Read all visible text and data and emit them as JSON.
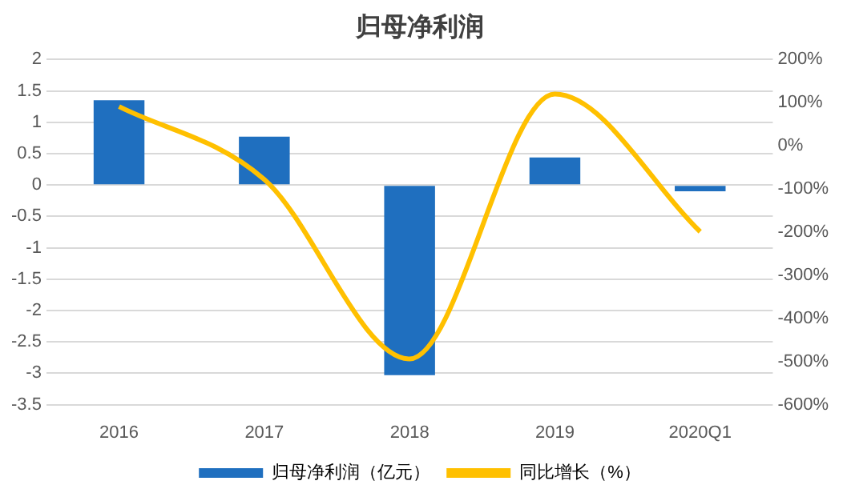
{
  "chart_data": {
    "type": "bar",
    "title": "归母净利润",
    "categories": [
      "2016",
      "2017",
      "2018",
      "2019",
      "2020Q1"
    ],
    "series": [
      {
        "name": "归母净利润（亿元）",
        "color": "#1f6fbf",
        "values": [
          1.35,
          0.77,
          -3.03,
          0.44,
          -0.1
        ]
      },
      {
        "name": "同比增长（%）",
        "type": "line",
        "axis": "y2",
        "color": "#ffc000",
        "values": [
          91,
          -78,
          -494,
          120,
          -199
        ]
      }
    ],
    "ylim": [
      -3.5,
      2
    ],
    "yticks": [
      -3.5,
      -3,
      -2.5,
      -2,
      -1.5,
      -1,
      -0.5,
      0,
      0.5,
      1,
      1.5,
      2
    ],
    "y2lim": [
      -600,
      200
    ],
    "y2ticks": [
      {
        "value": -600,
        "label": "-600%"
      },
      {
        "value": -500,
        "label": "-500%"
      },
      {
        "value": -400,
        "label": "-400%"
      },
      {
        "value": -300,
        "label": "-300%"
      },
      {
        "value": -200,
        "label": "-200%"
      },
      {
        "value": -100,
        "label": "-100%"
      },
      {
        "value": 0,
        "label": "0%"
      },
      {
        "value": 100,
        "label": "100%"
      },
      {
        "value": 200,
        "label": "200%"
      }
    ],
    "grid": "y",
    "legend": "bottom",
    "marker": "none"
  }
}
